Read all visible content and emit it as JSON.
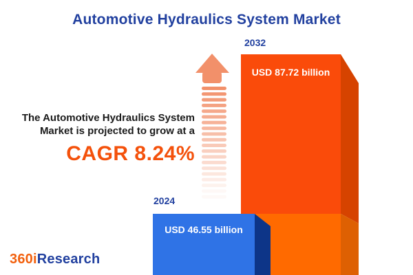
{
  "title": "Automotive Hydraulics System Market",
  "intro": {
    "line1": "The Automotive Hydraulics System",
    "line2": "Market is projected to grow at a",
    "cagr": "CAGR 8.24%"
  },
  "chart_data": {
    "type": "bar",
    "title": "Automotive Hydraulics System Market",
    "categories": [
      "2024",
      "2032"
    ],
    "values": [
      46.55,
      87.72
    ],
    "unit": "USD billion",
    "value_labels": [
      "USD 46.55 billion",
      "USD 87.72 billion"
    ],
    "cagr_percent": 8.24,
    "legend": "none",
    "grid": false,
    "bar_style": "3d-extruded",
    "annotations": [
      "growth arrow pointing up between text and 2032 bar"
    ]
  },
  "bars": {
    "bar_2024": {
      "year": "2024",
      "value_label": "USD 46.55 billion"
    },
    "bar_2032": {
      "year": "2032",
      "value_label": "USD 87.72 billion"
    }
  },
  "arrow": {
    "stripe_count": 20,
    "color": "#F2906A"
  },
  "logo": {
    "part1": "360i",
    "part2": "Research"
  },
  "colors": {
    "title_blue": "#21409F",
    "text_dark": "#1A1A1A",
    "cagr_orange": "#F4510B",
    "bar_2024_front": "#2F73E6",
    "bar_2024_side": "#0D3588",
    "bar_2032_front_top": "#FA4B0A",
    "bar_2032_front_bottom": "#FF6A00",
    "bar_2032_side_top": "#D64300",
    "bar_2032_side_bottom": "#DE6002",
    "arrow_salmon": "#F2906A",
    "logo_orange": "#F2600D",
    "logo_blue": "#21409F",
    "label_white": "#FFFFFF"
  }
}
